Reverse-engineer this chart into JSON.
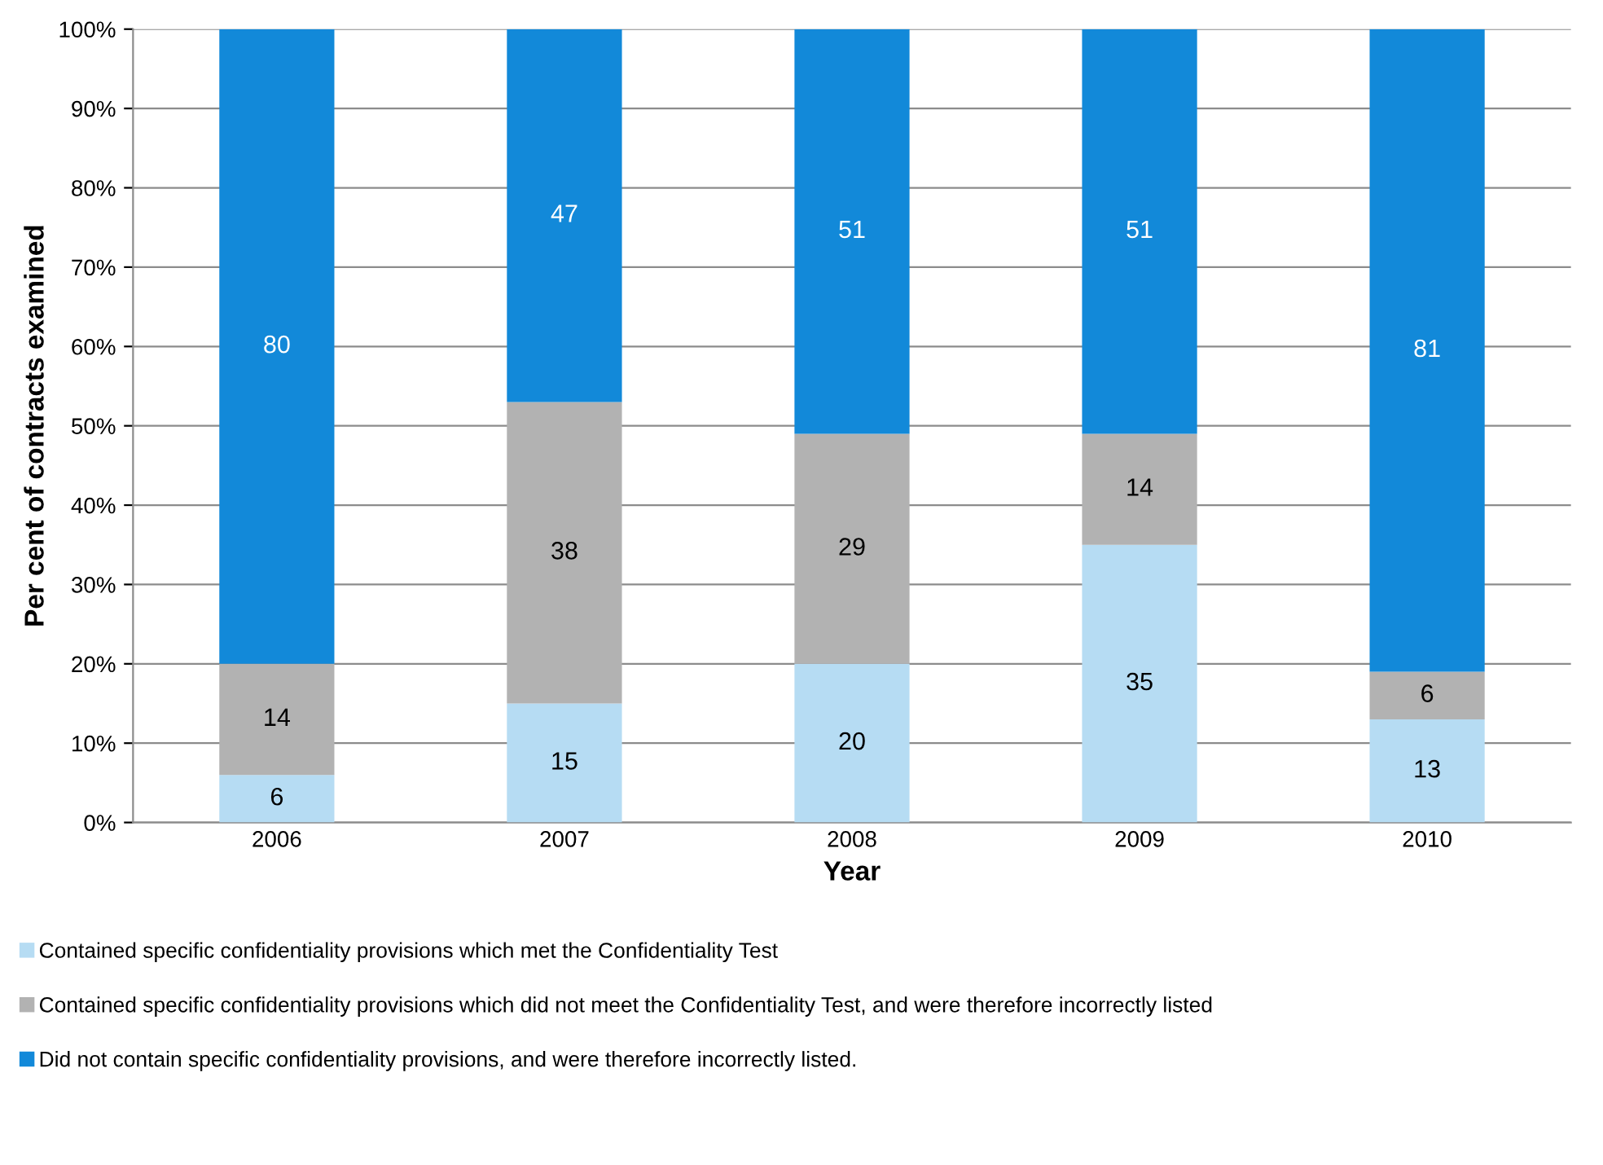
{
  "chart_data": {
    "type": "bar",
    "stacked": true,
    "xlabel": "Year",
    "ylabel": "Per cent of contracts examined",
    "categories": [
      "2006",
      "2007",
      "2008",
      "2009",
      "2010"
    ],
    "series": [
      {
        "name": "Contained specific confidentiality provisions which met the Confidentiality Test",
        "color": "#b6dcf3",
        "values": [
          6,
          15,
          20,
          35,
          13
        ]
      },
      {
        "name": "Contained specific confidentiality provisions which did not meet the Confidentiality Test, and were therefore incorrectly listed",
        "color": "#b2b2b2",
        "values": [
          14,
          38,
          29,
          14,
          6
        ]
      },
      {
        "name": "Did not contain specific confidentiality provisions, and were therefore incorrectly listed.",
        "color": "#1289d9",
        "values": [
          80,
          47,
          51,
          51,
          81
        ]
      }
    ],
    "ylim": [
      0,
      100
    ],
    "yticks": [
      {
        "value": 0,
        "label": "0%"
      },
      {
        "value": 10,
        "label": "10%"
      },
      {
        "value": 20,
        "label": "20%"
      },
      {
        "value": 30,
        "label": "30%"
      },
      {
        "value": 40,
        "label": "40%"
      },
      {
        "value": 50,
        "label": "50%"
      },
      {
        "value": 60,
        "label": "60%"
      },
      {
        "value": 70,
        "label": "70%"
      },
      {
        "value": 80,
        "label": "80%"
      },
      {
        "value": 90,
        "label": "90%"
      },
      {
        "value": 100,
        "label": "100%"
      }
    ],
    "grid": "y",
    "legend": "bottom",
    "data_labels": true
  }
}
